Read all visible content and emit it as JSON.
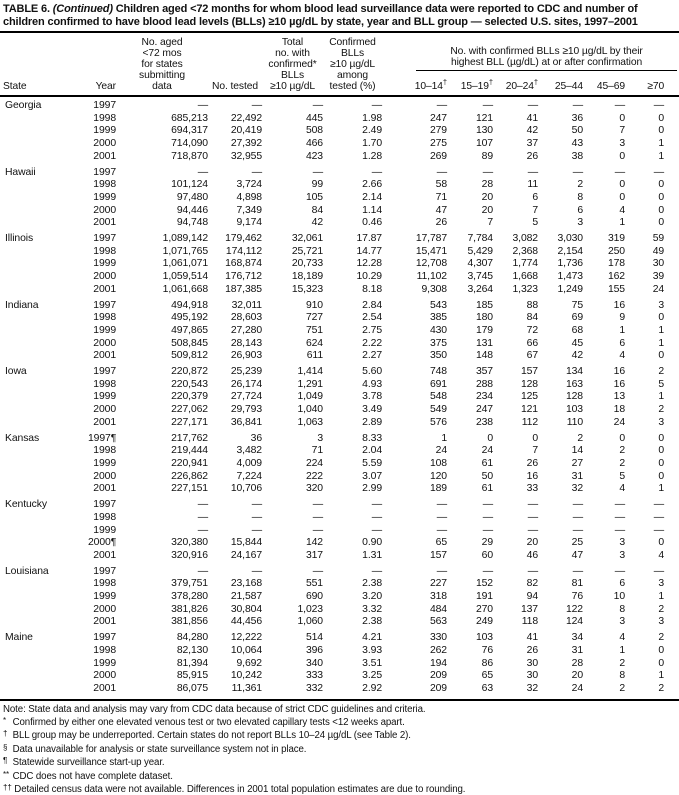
{
  "title": {
    "prefix": "TABLE 6.",
    "continued": "(Continued)",
    "rest": "Children aged <72 months for whom blood lead surveillance data were reported to CDC and number of children confirmed to have blood lead levels (BLLs) ≥10 µg/dL by state, year and BLL group — selected U.S. sites, 1997–2001"
  },
  "table": {
    "header": {
      "state": "State",
      "year": "Year",
      "no_aged": "No. aged\n<72 mos\nfor states\nsubmitting\ndata",
      "no_tested": "No. tested",
      "total_confirmed": "Total\nno. with\nconfirmed*\nBLLs\n≥10 µg/dL",
      "pct_tested": "Confirmed\nBLLs\n≥10 µg/dL\namong\ntested (%)",
      "bll_group_title": "No. with confirmed BLLs ≥10 µg/dL by their\nhighest BLL (µg/dL) at or after confirmation",
      "bll_groups": [
        {
          "label": "10–14",
          "sup": "†"
        },
        {
          "label": "15–19",
          "sup": "†"
        },
        {
          "label": "20–24",
          "sup": "†"
        },
        {
          "label": "25–44",
          "sup": ""
        },
        {
          "label": "45–69",
          "sup": ""
        },
        {
          "label": "≥70",
          "sup": ""
        }
      ]
    },
    "groups": [
      {
        "state": "Georgia",
        "rows": [
          {
            "year": "1997",
            "marker": "",
            "values": [
              "—",
              "—",
              "—",
              "—",
              "—",
              "—",
              "—",
              "—",
              "—",
              "—"
            ]
          },
          {
            "year": "1998",
            "marker": "",
            "values": [
              "685,213",
              "22,492",
              "445",
              "1.98",
              "247",
              "121",
              "41",
              "36",
              "0",
              "0"
            ]
          },
          {
            "year": "1999",
            "marker": "",
            "values": [
              "694,317",
              "20,419",
              "508",
              "2.49",
              "279",
              "130",
              "42",
              "50",
              "7",
              "0"
            ]
          },
          {
            "year": "2000",
            "marker": "",
            "values": [
              "714,090",
              "27,392",
              "466",
              "1.70",
              "275",
              "107",
              "37",
              "43",
              "3",
              "1"
            ]
          },
          {
            "year": "2001",
            "marker": "",
            "values": [
              "718,870",
              "32,955",
              "423",
              "1.28",
              "269",
              "89",
              "26",
              "38",
              "0",
              "1"
            ]
          }
        ]
      },
      {
        "state": "Hawaii",
        "rows": [
          {
            "year": "1997",
            "marker": "",
            "values": [
              "—",
              "—",
              "—",
              "—",
              "—",
              "—",
              "—",
              "—",
              "—",
              "—"
            ]
          },
          {
            "year": "1998",
            "marker": "",
            "values": [
              "101,124",
              "3,724",
              "99",
              "2.66",
              "58",
              "28",
              "11",
              "2",
              "0",
              "0"
            ]
          },
          {
            "year": "1999",
            "marker": "",
            "values": [
              "97,480",
              "4,898",
              "105",
              "2.14",
              "71",
              "20",
              "6",
              "8",
              "0",
              "0"
            ]
          },
          {
            "year": "2000",
            "marker": "",
            "values": [
              "94,446",
              "7,349",
              "84",
              "1.14",
              "47",
              "20",
              "7",
              "6",
              "4",
              "0"
            ]
          },
          {
            "year": "2001",
            "marker": "",
            "values": [
              "94,748",
              "9,174",
              "42",
              "0.46",
              "26",
              "7",
              "5",
              "3",
              "1",
              "0"
            ]
          }
        ]
      },
      {
        "state": "Illinois",
        "rows": [
          {
            "year": "1997",
            "marker": "",
            "values": [
              "1,089,142",
              "179,462",
              "32,061",
              "17.87",
              "17,787",
              "7,784",
              "3,082",
              "3,030",
              "319",
              "59"
            ]
          },
          {
            "year": "1998",
            "marker": "",
            "values": [
              "1,071,765",
              "174,112",
              "25,721",
              "14.77",
              "15,471",
              "5,429",
              "2,368",
              "2,154",
              "250",
              "49"
            ]
          },
          {
            "year": "1999",
            "marker": "",
            "values": [
              "1,061,071",
              "168,874",
              "20,733",
              "12.28",
              "12,708",
              "4,307",
              "1,774",
              "1,736",
              "178",
              "30"
            ]
          },
          {
            "year": "2000",
            "marker": "",
            "values": [
              "1,059,514",
              "176,712",
              "18,189",
              "10.29",
              "11,102",
              "3,745",
              "1,668",
              "1,473",
              "162",
              "39"
            ]
          },
          {
            "year": "2001",
            "marker": "",
            "values": [
              "1,061,668",
              "187,385",
              "15,323",
              "8.18",
              "9,308",
              "3,264",
              "1,323",
              "1,249",
              "155",
              "24"
            ]
          }
        ]
      },
      {
        "state": "Indiana",
        "rows": [
          {
            "year": "1997",
            "marker": "",
            "values": [
              "494,918",
              "32,011",
              "910",
              "2.84",
              "543",
              "185",
              "88",
              "75",
              "16",
              "3"
            ]
          },
          {
            "year": "1998",
            "marker": "",
            "values": [
              "495,192",
              "28,603",
              "727",
              "2.54",
              "385",
              "180",
              "84",
              "69",
              "9",
              "0"
            ]
          },
          {
            "year": "1999",
            "marker": "",
            "values": [
              "497,865",
              "27,280",
              "751",
              "2.75",
              "430",
              "179",
              "72",
              "68",
              "1",
              "1"
            ]
          },
          {
            "year": "2000",
            "marker": "",
            "values": [
              "508,845",
              "28,143",
              "624",
              "2.22",
              "375",
              "131",
              "66",
              "45",
              "6",
              "1"
            ]
          },
          {
            "year": "2001",
            "marker": "",
            "values": [
              "509,812",
              "26,903",
              "611",
              "2.27",
              "350",
              "148",
              "67",
              "42",
              "4",
              "0"
            ]
          }
        ]
      },
      {
        "state": "Iowa",
        "rows": [
          {
            "year": "1997",
            "marker": "",
            "values": [
              "220,872",
              "25,239",
              "1,414",
              "5.60",
              "748",
              "357",
              "157",
              "134",
              "16",
              "2"
            ]
          },
          {
            "year": "1998",
            "marker": "",
            "values": [
              "220,543",
              "26,174",
              "1,291",
              "4.93",
              "691",
              "288",
              "128",
              "163",
              "16",
              "5"
            ]
          },
          {
            "year": "1999",
            "marker": "",
            "values": [
              "220,379",
              "27,724",
              "1,049",
              "3.78",
              "548",
              "234",
              "125",
              "128",
              "13",
              "1"
            ]
          },
          {
            "year": "2000",
            "marker": "",
            "values": [
              "227,062",
              "29,793",
              "1,040",
              "3.49",
              "549",
              "247",
              "121",
              "103",
              "18",
              "2"
            ]
          },
          {
            "year": "2001",
            "marker": "",
            "values": [
              "227,171",
              "36,841",
              "1,063",
              "2.89",
              "576",
              "238",
              "112",
              "110",
              "24",
              "3"
            ]
          }
        ]
      },
      {
        "state": "Kansas",
        "rows": [
          {
            "year": "1997",
            "marker": "¶",
            "values": [
              "217,762",
              "36",
              "3",
              "8.33",
              "1",
              "0",
              "0",
              "2",
              "0",
              "0"
            ]
          },
          {
            "year": "1998",
            "marker": "",
            "values": [
              "219,444",
              "3,482",
              "71",
              "2.04",
              "24",
              "24",
              "7",
              "14",
              "2",
              "0"
            ]
          },
          {
            "year": "1999",
            "marker": "",
            "values": [
              "220,941",
              "4,009",
              "224",
              "5.59",
              "108",
              "61",
              "26",
              "27",
              "2",
              "0"
            ]
          },
          {
            "year": "2000",
            "marker": "",
            "values": [
              "226,862",
              "7,224",
              "222",
              "3.07",
              "120",
              "50",
              "16",
              "31",
              "5",
              "0"
            ]
          },
          {
            "year": "2001",
            "marker": "",
            "values": [
              "227,151",
              "10,706",
              "320",
              "2.99",
              "189",
              "61",
              "33",
              "32",
              "4",
              "1"
            ]
          }
        ]
      },
      {
        "state": "Kentucky",
        "rows": [
          {
            "year": "1997",
            "marker": "",
            "values": [
              "—",
              "—",
              "—",
              "—",
              "—",
              "—",
              "—",
              "—",
              "—",
              "—"
            ]
          },
          {
            "year": "1998",
            "marker": "",
            "values": [
              "—",
              "—",
              "—",
              "—",
              "—",
              "—",
              "—",
              "—",
              "—",
              "—"
            ]
          },
          {
            "year": "1999",
            "marker": "",
            "values": [
              "—",
              "—",
              "—",
              "—",
              "—",
              "—",
              "—",
              "—",
              "—",
              "—"
            ]
          },
          {
            "year": "2000",
            "marker": "¶",
            "values": [
              "320,380",
              "15,844",
              "142",
              "0.90",
              "65",
              "29",
              "20",
              "25",
              "3",
              "0"
            ]
          },
          {
            "year": "2001",
            "marker": "",
            "values": [
              "320,916",
              "24,167",
              "317",
              "1.31",
              "157",
              "60",
              "46",
              "47",
              "3",
              "4"
            ]
          }
        ]
      },
      {
        "state": "Louisiana",
        "rows": [
          {
            "year": "1997",
            "marker": "",
            "values": [
              "—",
              "—",
              "—",
              "—",
              "—",
              "—",
              "—",
              "—",
              "—",
              "—"
            ]
          },
          {
            "year": "1998",
            "marker": "",
            "values": [
              "379,751",
              "23,168",
              "551",
              "2.38",
              "227",
              "152",
              "82",
              "81",
              "6",
              "3"
            ]
          },
          {
            "year": "1999",
            "marker": "",
            "values": [
              "378,280",
              "21,587",
              "690",
              "3.20",
              "318",
              "191",
              "94",
              "76",
              "10",
              "1"
            ]
          },
          {
            "year": "2000",
            "marker": "",
            "values": [
              "381,826",
              "30,804",
              "1,023",
              "3.32",
              "484",
              "270",
              "137",
              "122",
              "8",
              "2"
            ]
          },
          {
            "year": "2001",
            "marker": "",
            "values": [
              "381,856",
              "44,456",
              "1,060",
              "2.38",
              "563",
              "249",
              "118",
              "124",
              "3",
              "3"
            ]
          }
        ]
      },
      {
        "state": "Maine",
        "rows": [
          {
            "year": "1997",
            "marker": "",
            "values": [
              "84,280",
              "12,222",
              "514",
              "4.21",
              "330",
              "103",
              "41",
              "34",
              "4",
              "2"
            ]
          },
          {
            "year": "1998",
            "marker": "",
            "values": [
              "82,130",
              "10,064",
              "396",
              "3.93",
              "262",
              "76",
              "26",
              "31",
              "1",
              "0"
            ]
          },
          {
            "year": "1999",
            "marker": "",
            "values": [
              "81,394",
              "9,692",
              "340",
              "3.51",
              "194",
              "86",
              "30",
              "28",
              "2",
              "0"
            ]
          },
          {
            "year": "2000",
            "marker": "",
            "values": [
              "85,915",
              "10,242",
              "333",
              "3.25",
              "209",
              "65",
              "30",
              "20",
              "8",
              "1"
            ]
          },
          {
            "year": "2001",
            "marker": "",
            "values": [
              "86,075",
              "11,361",
              "332",
              "2.92",
              "209",
              "63",
              "32",
              "24",
              "2",
              "2"
            ]
          }
        ]
      }
    ]
  },
  "footnotes": [
    {
      "sym": "Note:",
      "sup": false,
      "text": "State data and analysis may vary from CDC data because of strict CDC guidelines and criteria."
    },
    {
      "sym": "*",
      "sup": true,
      "text": "Confirmed by either one elevated venous test or two elevated capillary tests <12 weeks apart."
    },
    {
      "sym": "†",
      "sup": true,
      "text": "BLL group may be underreported. Certain states do not report BLLs 10–24 µg/dL (see Table 2)."
    },
    {
      "sym": "§",
      "sup": true,
      "text": "Data unavailable for analysis or state surveillance system not in place."
    },
    {
      "sym": "¶",
      "sup": true,
      "text": "Statewide surveillance start-up year."
    },
    {
      "sym": "**",
      "sup": true,
      "text": "CDC does not have complete dataset."
    },
    {
      "sym": "††",
      "sup": true,
      "text": "Detailed census data were not available. Differences in 2001 total population estimates are due to rounding."
    }
  ]
}
